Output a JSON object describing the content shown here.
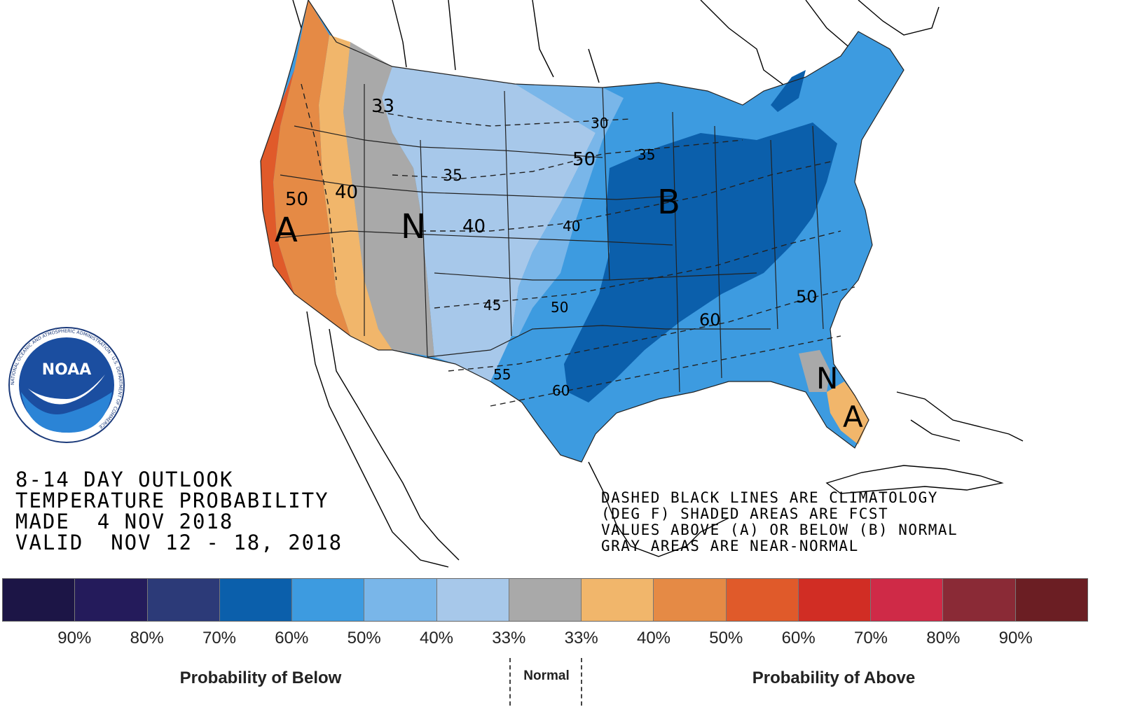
{
  "title": {
    "line1": "8-14 DAY OUTLOOK",
    "line2": "TEMPERATURE PROBABILITY",
    "line3": "MADE  4 NOV 2018",
    "line4": "VALID  NOV 12 - 18, 2018"
  },
  "notes": {
    "line1": "DASHED BLACK LINES ARE CLIMATOLOGY",
    "line2": "(DEG F) SHADED AREAS ARE FCST",
    "line3": "VALUES ABOVE (A) OR BELOW (B) NORMAL",
    "line4": "GRAY AREAS ARE NEAR-NORMAL"
  },
  "logo": {
    "text": "NOAA",
    "ring_text": "NATIONAL OCEANIC AND ATMOSPHERIC ADMINISTRATION · U.S. DEPARTMENT OF COMMERCE"
  },
  "map": {
    "region_labels": {
      "above_west": "A",
      "normal_west": "N",
      "below_east": "B",
      "normal_florida": "N",
      "above_florida": "A"
    },
    "climatology_labels": [
      "33",
      "30",
      "35",
      "50",
      "35",
      "50",
      "40",
      "40",
      "40",
      "45",
      "50",
      "55",
      "60",
      "60",
      "50"
    ]
  },
  "legend": {
    "colors": [
      "#1c1546",
      "#241b5b",
      "#2c3a78",
      "#0b5fab",
      "#3d9be0",
      "#79b6e9",
      "#a7c8ea",
      "#a9a9a9",
      "#f1b66b",
      "#e58a45",
      "#e05a2a",
      "#d12d24",
      "#cf2a47",
      "#8a2a36",
      "#6b1e23"
    ],
    "ticks": [
      "90%",
      "80%",
      "70%",
      "60%",
      "50%",
      "40%",
      "33%",
      "33%",
      "40%",
      "50%",
      "60%",
      "70%",
      "80%",
      "90%"
    ],
    "below_label": "Probability of Below",
    "normal_label": "Normal",
    "above_label": "Probability of Above"
  }
}
